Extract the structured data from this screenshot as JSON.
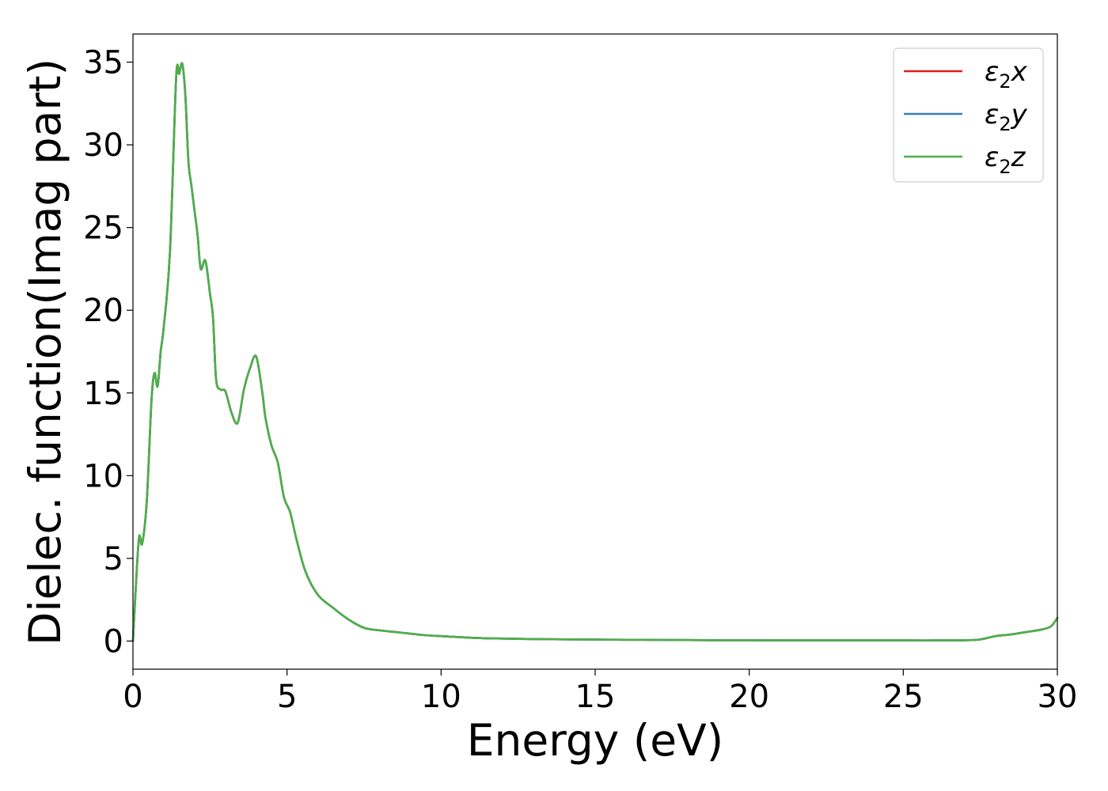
{
  "chart_data": {
    "type": "line",
    "title": "",
    "xlabel": "Energy (eV)",
    "ylabel": "Dielec. function(Imag part)",
    "xlim": [
      0,
      30
    ],
    "ylim": [
      -1.7,
      36.7
    ],
    "xticks": [
      0,
      5,
      10,
      15,
      20,
      25,
      30
    ],
    "yticks": [
      0,
      5,
      10,
      15,
      20,
      25,
      30,
      35
    ],
    "grid": false,
    "legend_position": "top-right",
    "x": [
      0,
      0.1,
      0.2,
      0.3,
      0.45,
      0.6,
      0.7,
      0.8,
      0.9,
      1.0,
      1.2,
      1.4,
      1.5,
      1.6,
      1.7,
      1.8,
      1.9,
      2.0,
      2.1,
      2.2,
      2.35,
      2.5,
      2.6,
      2.7,
      2.85,
      3.0,
      3.2,
      3.4,
      3.6,
      3.8,
      4.0,
      4.2,
      4.3,
      4.5,
      4.7,
      4.9,
      5.1,
      5.3,
      5.6,
      6.0,
      6.5,
      7.0,
      7.5,
      8.0,
      8.5,
      9.0,
      9.5,
      10.0,
      11.0,
      12.0,
      13.0,
      14.0,
      15.0,
      16.0,
      17.0,
      18.0,
      19.0,
      20.0,
      21.0,
      22.0,
      23.0,
      24.0,
      25.0,
      26.0,
      27.0,
      27.5,
      28.0,
      28.5,
      29.0,
      29.5,
      29.8,
      30.0
    ],
    "series": [
      {
        "name": "ε2x",
        "color": "#e41a1c",
        "values": [
          0,
          3.5,
          6.3,
          5.9,
          8.5,
          14.5,
          16.2,
          15.4,
          17.5,
          19.0,
          23.5,
          34.0,
          34.3,
          34.9,
          33.0,
          29.0,
          27.5,
          26.0,
          24.5,
          22.5,
          23.0,
          21.0,
          19.5,
          15.8,
          15.2,
          15.1,
          13.8,
          13.2,
          15.2,
          16.5,
          17.2,
          15.0,
          13.5,
          11.8,
          10.8,
          8.7,
          7.8,
          6.2,
          4.2,
          2.8,
          2.0,
          1.3,
          0.8,
          0.65,
          0.55,
          0.45,
          0.35,
          0.3,
          0.2,
          0.15,
          0.12,
          0.1,
          0.09,
          0.08,
          0.07,
          0.06,
          0.05,
          0.05,
          0.04,
          0.04,
          0.04,
          0.04,
          0.04,
          0.04,
          0.05,
          0.1,
          0.3,
          0.4,
          0.55,
          0.7,
          0.9,
          1.4
        ]
      },
      {
        "name": "ε2y",
        "color": "#377eb8",
        "values": [
          0,
          3.5,
          6.3,
          5.9,
          8.5,
          14.5,
          16.2,
          15.4,
          17.5,
          19.0,
          23.5,
          34.0,
          34.3,
          34.9,
          33.0,
          29.0,
          27.5,
          26.0,
          24.5,
          22.5,
          23.0,
          21.0,
          19.5,
          15.8,
          15.2,
          15.1,
          13.8,
          13.2,
          15.2,
          16.5,
          17.2,
          15.0,
          13.5,
          11.8,
          10.8,
          8.7,
          7.8,
          6.2,
          4.2,
          2.8,
          2.0,
          1.3,
          0.8,
          0.65,
          0.55,
          0.45,
          0.35,
          0.3,
          0.2,
          0.15,
          0.12,
          0.1,
          0.09,
          0.08,
          0.07,
          0.06,
          0.05,
          0.05,
          0.04,
          0.04,
          0.04,
          0.04,
          0.04,
          0.04,
          0.05,
          0.1,
          0.3,
          0.4,
          0.55,
          0.7,
          0.9,
          1.4
        ]
      },
      {
        "name": "ε2z",
        "color": "#4daf4a",
        "values": [
          0,
          3.5,
          6.3,
          5.9,
          8.5,
          14.5,
          16.2,
          15.4,
          17.5,
          19.0,
          23.5,
          34.0,
          34.3,
          34.9,
          33.0,
          29.0,
          27.5,
          26.0,
          24.5,
          22.5,
          23.0,
          21.0,
          19.5,
          15.8,
          15.2,
          15.1,
          13.8,
          13.2,
          15.2,
          16.5,
          17.2,
          15.0,
          13.5,
          11.8,
          10.8,
          8.7,
          7.8,
          6.2,
          4.2,
          2.8,
          2.0,
          1.3,
          0.8,
          0.65,
          0.55,
          0.45,
          0.35,
          0.3,
          0.2,
          0.15,
          0.12,
          0.1,
          0.09,
          0.08,
          0.07,
          0.06,
          0.05,
          0.05,
          0.04,
          0.04,
          0.04,
          0.04,
          0.04,
          0.04,
          0.05,
          0.1,
          0.3,
          0.4,
          0.55,
          0.7,
          0.9,
          1.4
        ]
      }
    ],
    "legend": [
      {
        "symbol": "ε",
        "sub": "2",
        "axis": "x"
      },
      {
        "symbol": "ε",
        "sub": "2",
        "axis": "y"
      },
      {
        "symbol": "ε",
        "sub": "2",
        "axis": "z"
      }
    ]
  }
}
